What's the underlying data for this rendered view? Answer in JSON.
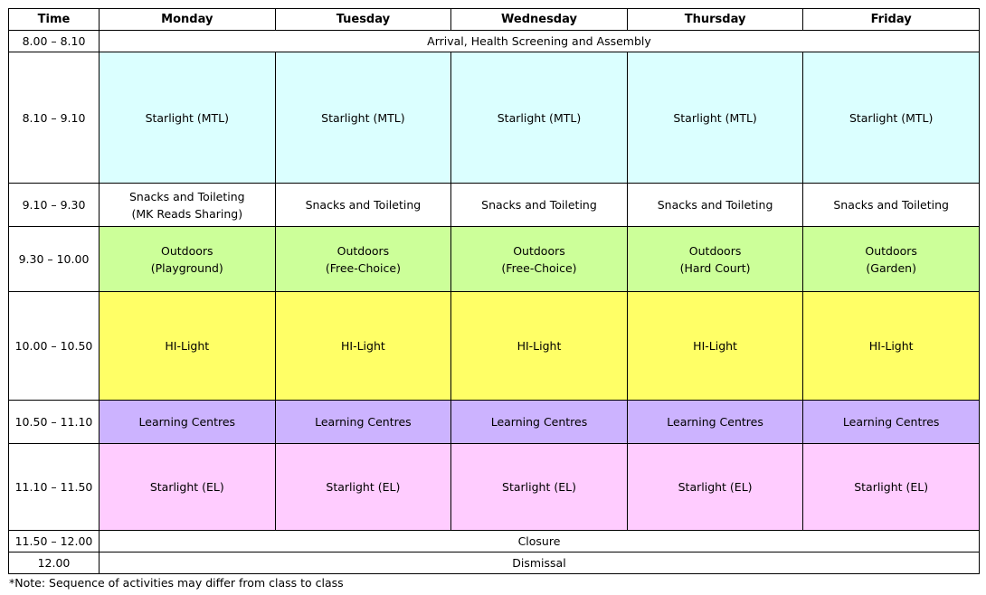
{
  "header": {
    "time": "Time",
    "days": [
      "Monday",
      "Tuesday",
      "Wednesday",
      "Thursday",
      "Friday"
    ]
  },
  "rows": {
    "arrival": {
      "time": "8.00 – 8.10",
      "activity": "Arrival, Health Screening and Assembly"
    },
    "mtl": {
      "time": "8.10 – 9.10",
      "cells": [
        "Starlight (MTL)",
        "Starlight (MTL)",
        "Starlight (MTL)",
        "Starlight (MTL)",
        "Starlight (MTL)"
      ]
    },
    "snacks": {
      "time": "9.10 – 9.30",
      "monday_line1": "Snacks and Toileting",
      "monday_line2": "(MK Reads Sharing)",
      "cells": [
        "Snacks and Toileting",
        "Snacks and Toileting",
        "Snacks and Toileting",
        "Snacks and Toileting"
      ]
    },
    "outdoors": {
      "time": "9.30 – 10.00",
      "cells": [
        {
          "line1": "Outdoors",
          "line2": "(Playground)"
        },
        {
          "line1": "Outdoors",
          "line2": "(Free-Choice)"
        },
        {
          "line1": "Outdoors",
          "line2": "(Free-Choice)"
        },
        {
          "line1": "Outdoors",
          "line2": "(Hard Court)"
        },
        {
          "line1": "Outdoors",
          "line2": "(Garden)"
        }
      ]
    },
    "hilight": {
      "time": "10.00 – 10.50",
      "cells": [
        "HI-Light",
        "HI-Light",
        "HI-Light",
        "HI-Light",
        "HI-Light"
      ]
    },
    "learning": {
      "time": "10.50 – 11.10",
      "cells": [
        "Learning Centres",
        "Learning Centres",
        "Learning Centres",
        "Learning Centres",
        "Learning Centres"
      ]
    },
    "el": {
      "time": "11.10 – 11.50",
      "cells": [
        "Starlight (EL)",
        "Starlight (EL)",
        "Starlight (EL)",
        "Starlight (EL)",
        "Starlight (EL)"
      ]
    },
    "closure": {
      "time": "11.50 – 12.00",
      "activity": "Closure"
    },
    "dismissal": {
      "time": "12.00",
      "activity": "Dismissal"
    }
  },
  "colors": {
    "mtl": "#dbffff",
    "outdoors": "#ccff99",
    "hilight": "#ffff66",
    "learning": "#ccb3ff",
    "el": "#ffccff"
  },
  "note": "*Note: Sequence of activities may differ from class to class"
}
